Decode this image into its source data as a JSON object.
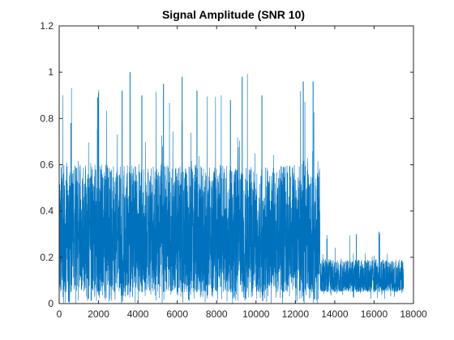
{
  "chart_data": {
    "type": "line",
    "title": "Signal Amplitude (SNR 10)",
    "xlabel": "",
    "ylabel": "",
    "xlim": [
      0,
      18000
    ],
    "ylim": [
      0,
      1.2
    ],
    "x_ticks": [
      0,
      2000,
      4000,
      6000,
      8000,
      10000,
      12000,
      14000,
      16000,
      18000
    ],
    "x_tick_labels": [
      "0",
      "2000",
      "4000",
      "6000",
      "8000",
      "10000",
      "12000",
      "14000",
      "16000",
      "18000"
    ],
    "y_ticks": [
      0,
      0.2,
      0.4,
      0.6,
      0.8,
      1,
      1.2
    ],
    "y_tick_labels": [
      "0",
      "0.2",
      "0.4",
      "0.6",
      "0.8",
      "1",
      "1.2"
    ],
    "grid": false,
    "box": true,
    "series": [
      {
        "color": "#0072BD",
        "segments": [
          {
            "x_start": 0,
            "x_end": 13250,
            "typical_low": 0.05,
            "typical_high": 0.6,
            "peak_max": 1.0,
            "floor_min": 0.0
          },
          {
            "x_start": 13250,
            "x_end": 17500,
            "typical_low": 0.05,
            "typical_high": 0.19,
            "peak_max": 0.31,
            "floor_min": 0.02
          }
        ],
        "notable_peaks": [
          {
            "x": 600,
            "y": 0.78
          },
          {
            "x": 1950,
            "y": 0.89
          },
          {
            "x": 3200,
            "y": 0.92
          },
          {
            "x": 3600,
            "y": 1.0
          },
          {
            "x": 4200,
            "y": 0.9
          },
          {
            "x": 5300,
            "y": 0.95
          },
          {
            "x": 6250,
            "y": 0.98
          },
          {
            "x": 7000,
            "y": 0.92
          },
          {
            "x": 8700,
            "y": 0.88
          },
          {
            "x": 9300,
            "y": 0.98
          },
          {
            "x": 10300,
            "y": 0.9
          },
          {
            "x": 12400,
            "y": 0.96
          },
          {
            "x": 12900,
            "y": 0.96
          },
          {
            "x": 13600,
            "y": 0.28
          },
          {
            "x": 15100,
            "y": 0.3
          },
          {
            "x": 16250,
            "y": 0.31
          }
        ]
      }
    ]
  }
}
